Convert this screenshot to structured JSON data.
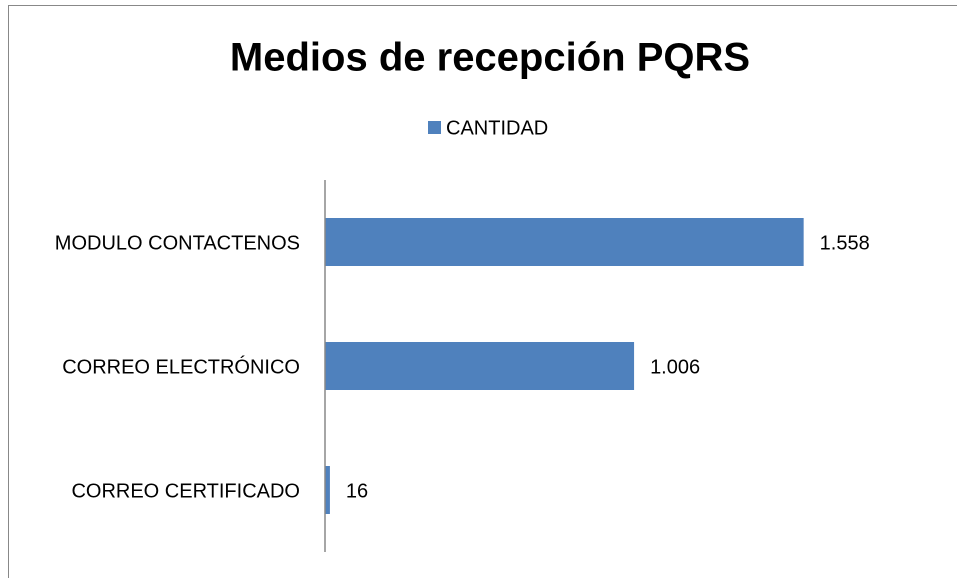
{
  "chart_data": {
    "type": "bar",
    "horizontal": true,
    "title": "Medios de recepción PQRS",
    "categories": [
      "MODULO CONTACTENOS",
      "CORREO ELECTRÓNICO",
      "CORREO CERTIFICADO"
    ],
    "series": [
      {
        "name": "CANTIDAD",
        "color": "#4f81bd",
        "values": [
          1558,
          1006,
          16
        ],
        "value_labels": [
          "1.558",
          "1.006",
          "16"
        ]
      }
    ],
    "xlim": [
      0,
      1800
    ]
  }
}
